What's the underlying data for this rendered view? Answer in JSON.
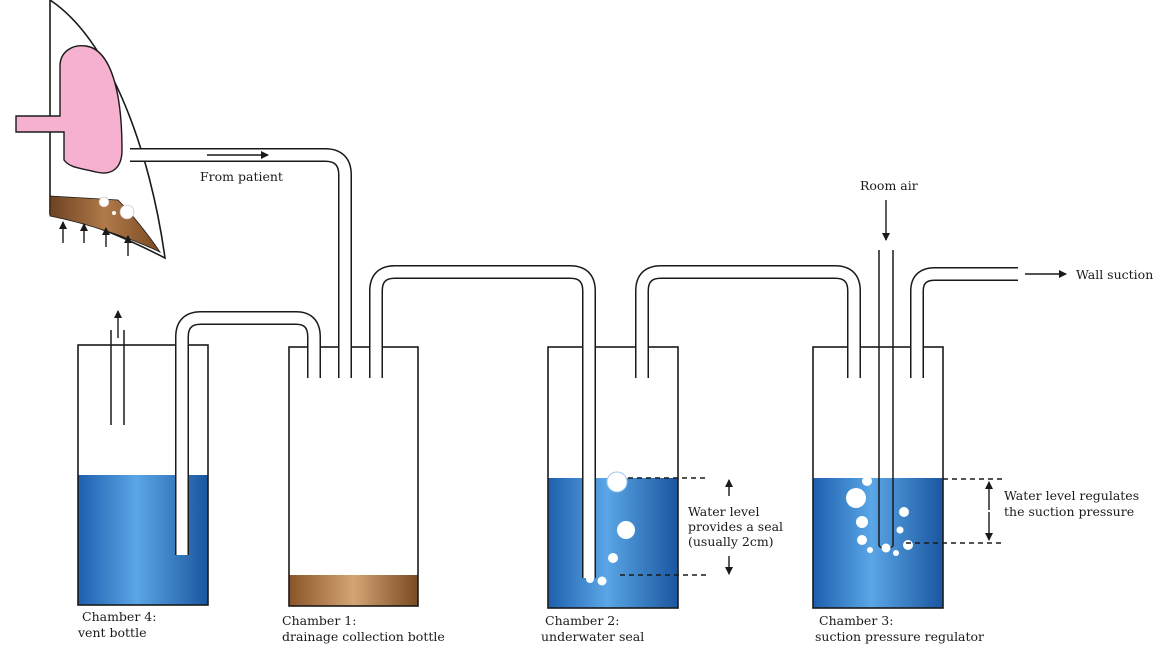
{
  "labels": {
    "from_patient": "From patient",
    "room_air": "Room air",
    "wall_suction": "Wall suction",
    "seal_note": [
      "Water level",
      "provides a seal",
      "(usually 2cm)"
    ],
    "regulate_note": [
      "Water level regulates",
      "the suction pressure"
    ]
  },
  "chambers": [
    {
      "id": "chamber-4",
      "title": "Chamber 4:",
      "subtitle": "vent bottle"
    },
    {
      "id": "chamber-1",
      "title": "Chamber 1:",
      "subtitle": "drainage collection bottle"
    },
    {
      "id": "chamber-2",
      "title": "Chamber 2:",
      "subtitle": "underwater seal"
    },
    {
      "id": "chamber-3",
      "title": "Chamber 3:",
      "subtitle": "suction pressure regulator"
    }
  ],
  "colors": {
    "water_dark": "#1e64b4",
    "water_light": "#5aa6e6",
    "lung": "#f6b1d1",
    "fluid_dark": "#7a4a22",
    "fluid_light": "#c89a6a"
  },
  "icons": {
    "lung": "lung-icon",
    "bubbles": "bubble-icon",
    "arrows": "arrow-icon"
  }
}
